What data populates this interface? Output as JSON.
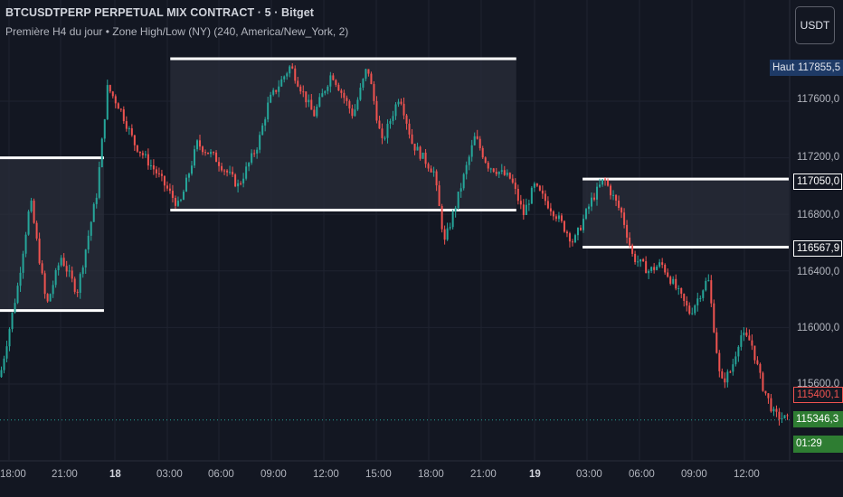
{
  "header": {
    "title": "BTCUSDTPERP PERPETUAL MIX CONTRACT · 5 · Bitget",
    "indicator": "Première H4 du jour • Zone High/Low (NY) (240, America/New_York, 2)"
  },
  "currency_button": "USDT",
  "price_axis": {
    "ticks": [
      "117600,0",
      "117200,0",
      "116800,0",
      "116400,0",
      "116000,0",
      "115600,0"
    ]
  },
  "time_axis": {
    "ticks": [
      "18:00",
      "21:00",
      "18",
      "03:00",
      "06:00",
      "09:00",
      "12:00",
      "15:00",
      "18:00",
      "21:00",
      "19",
      "03:00",
      "06:00",
      "09:00",
      "12:00"
    ]
  },
  "tags": {
    "high_label": "Haut",
    "high_value": "117855,5",
    "zone_top": "117050,0",
    "zone_bottom": "116567,9",
    "red_value": "115400,1",
    "last_price": "115346,3",
    "countdown": "01:29"
  },
  "colors": {
    "background": "#131722",
    "up": "#26a69a",
    "down": "#ef5350",
    "zone_line": "#ffffff",
    "zone_fill": "#2a2e39",
    "high_tag": "#1e3a66",
    "last_tag": "#2e7d32"
  },
  "chart_data": {
    "type": "candlestick",
    "title": "BTCUSDTPERP PERPETUAL MIX CONTRACT · 5 · Bitget",
    "price_range": [
      115300,
      118150
    ],
    "x_labels": [
      "18:00",
      "21:00",
      "18",
      "03:00",
      "06:00",
      "09:00",
      "12:00",
      "15:00",
      "18:00",
      "21:00",
      "19",
      "03:00",
      "06:00",
      "09:00",
      "12:00"
    ],
    "price_path": [
      {
        "t": 0.0,
        "p": 115650
      },
      {
        "t": 1.0,
        "p": 116300
      },
      {
        "t": 1.7,
        "p": 116900
      },
      {
        "t": 2.6,
        "p": 116150
      },
      {
        "t": 3.4,
        "p": 116500
      },
      {
        "t": 4.3,
        "p": 116250
      },
      {
        "t": 5.4,
        "p": 116950
      },
      {
        "t": 6.0,
        "p": 117700
      },
      {
        "t": 6.7,
        "p": 117550
      },
      {
        "t": 7.5,
        "p": 117300
      },
      {
        "t": 8.7,
        "p": 117100
      },
      {
        "t": 10.0,
        "p": 116850
      },
      {
        "t": 11.0,
        "p": 117300
      },
      {
        "t": 12.0,
        "p": 117200
      },
      {
        "t": 13.3,
        "p": 117000
      },
      {
        "t": 14.4,
        "p": 117300
      },
      {
        "t": 15.0,
        "p": 117600
      },
      {
        "t": 16.2,
        "p": 117850
      },
      {
        "t": 17.5,
        "p": 117500
      },
      {
        "t": 18.5,
        "p": 117800
      },
      {
        "t": 19.7,
        "p": 117500
      },
      {
        "t": 20.5,
        "p": 117850
      },
      {
        "t": 21.3,
        "p": 117300
      },
      {
        "t": 22.3,
        "p": 117650
      },
      {
        "t": 23.0,
        "p": 117300
      },
      {
        "t": 24.2,
        "p": 117100
      },
      {
        "t": 24.8,
        "p": 116600
      },
      {
        "t": 25.5,
        "p": 116900
      },
      {
        "t": 26.5,
        "p": 117350
      },
      {
        "t": 27.2,
        "p": 117150
      },
      {
        "t": 28.5,
        "p": 117050
      },
      {
        "t": 29.2,
        "p": 116800
      },
      {
        "t": 29.8,
        "p": 117000
      },
      {
        "t": 31.0,
        "p": 116800
      },
      {
        "t": 32.0,
        "p": 116600
      },
      {
        "t": 33.0,
        "p": 116900
      },
      {
        "t": 33.7,
        "p": 117050
      },
      {
        "t": 34.7,
        "p": 116800
      },
      {
        "t": 35.3,
        "p": 116500
      },
      {
        "t": 36.2,
        "p": 116400
      },
      {
        "t": 36.9,
        "p": 116450
      },
      {
        "t": 37.6,
        "p": 116300
      },
      {
        "t": 38.5,
        "p": 116100
      },
      {
        "t": 39.5,
        "p": 116350
      },
      {
        "t": 40.2,
        "p": 115600
      },
      {
        "t": 40.8,
        "p": 115700
      },
      {
        "t": 41.3,
        "p": 115950
      },
      {
        "t": 41.9,
        "p": 115900
      },
      {
        "t": 42.5,
        "p": 115600
      },
      {
        "t": 43.2,
        "p": 115380
      },
      {
        "t": 44.0,
        "p": 115346
      }
    ],
    "zones": [
      {
        "high": 117200,
        "low": 116120,
        "start": 0.0,
        "end": 5.8
      },
      {
        "high": 117900,
        "low": 116830,
        "start": 9.5,
        "end": 28.8
      },
      {
        "high": 117050,
        "low": 116567.9,
        "start": 32.5,
        "end": 44.0
      }
    ],
    "session_high": 117855.5,
    "last_price": 115346.3
  }
}
